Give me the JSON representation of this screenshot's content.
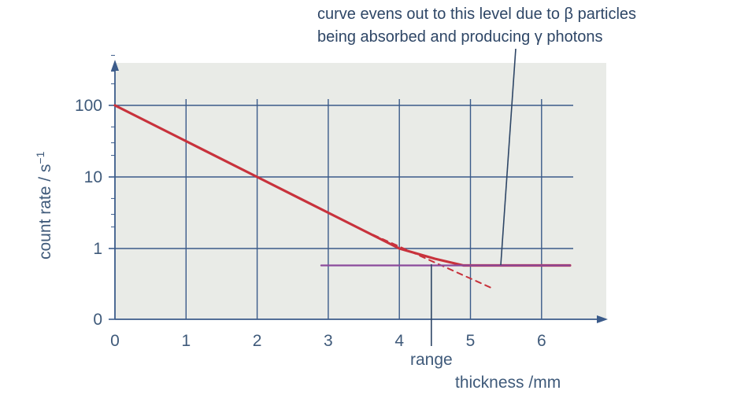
{
  "chart_data": {
    "type": "line",
    "title": "",
    "xlabel": "thickness /mm",
    "ylabel": "count rate / s",
    "ylabel_superscript": "−1",
    "xlim": [
      0,
      6.5
    ],
    "y_scale": "log",
    "y_tick_labels": [
      "0",
      "1",
      "10",
      "100"
    ],
    "x_tick_labels": [
      "0",
      "1",
      "2",
      "3",
      "4",
      "5",
      "6"
    ],
    "grid": true,
    "series": [
      {
        "style": "solid",
        "color": "#c8323c",
        "points": [
          [
            0,
            100
          ],
          [
            1,
            31.6
          ],
          [
            2,
            10
          ],
          [
            3,
            3.16
          ],
          [
            4,
            1.0
          ],
          [
            4.5,
            0.72
          ],
          [
            4.9,
            0.58
          ],
          [
            5.5,
            0.58
          ],
          [
            6.4,
            0.58
          ]
        ]
      },
      {
        "style": "dashed",
        "color": "#c8323c",
        "points": [
          [
            3.5,
            1.78
          ],
          [
            5.3,
            0.28
          ]
        ]
      },
      {
        "style": "solid",
        "color": "#8a4a9c",
        "points": [
          [
            2.9,
            0.58
          ],
          [
            6.4,
            0.58
          ]
        ]
      }
    ],
    "annotations": {
      "note_line1": "curve evens out to this level due to β particles",
      "note_line2": "being absorbed and producing γ photons",
      "range_label": "range",
      "range_x": 4.45
    }
  }
}
